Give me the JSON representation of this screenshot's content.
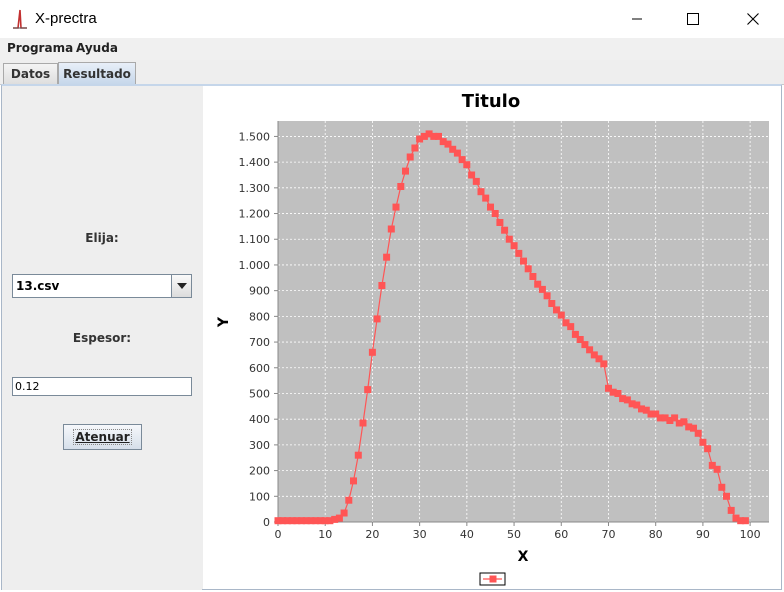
{
  "window": {
    "title": "X-prectra",
    "icon": "chart-spike-icon",
    "controls": [
      "minimize-icon",
      "maximize-icon",
      "close-icon"
    ]
  },
  "menu": {
    "items": [
      "Programa",
      "Ayuda"
    ]
  },
  "tabs": [
    {
      "label": "Datos",
      "active": false
    },
    {
      "label": "Resultado",
      "active": true
    }
  ],
  "panel": {
    "select_label": "Elija:",
    "select_value": "13.csv",
    "thickness_label": "Espesor:",
    "thickness_value": "0.12",
    "button_label": "Atenuar"
  },
  "colors": {
    "series": "#ff5555",
    "plot_bg": "#c0c0c0",
    "gridline": "#ffffff"
  },
  "chart_data": {
    "type": "line",
    "title": "Titulo",
    "xlabel": "X",
    "ylabel": "Y",
    "xlim": [
      0,
      104
    ],
    "ylim": [
      0,
      1560
    ],
    "xticks": [
      0,
      10,
      20,
      30,
      40,
      50,
      60,
      70,
      80,
      90,
      100
    ],
    "yticks": [
      0,
      100,
      200,
      300,
      400,
      500,
      600,
      700,
      800,
      900,
      1000,
      1100,
      1200,
      1300,
      1400,
      1500
    ],
    "ytick_labels": [
      "0",
      "100",
      "200",
      "300",
      "400",
      "500",
      "600",
      "700",
      "800",
      "900",
      "1.000",
      "1.100",
      "1.200",
      "1.300",
      "1.400",
      "1.500"
    ],
    "grid": true,
    "legend": "bottom-center",
    "series": [
      {
        "marker": "square",
        "x": [
          0,
          1,
          2,
          3,
          4,
          5,
          6,
          7,
          8,
          9,
          10,
          11,
          12,
          13,
          14,
          15,
          16,
          17,
          18,
          19,
          20,
          21,
          22,
          23,
          24,
          25,
          26,
          27,
          28,
          29,
          30,
          31,
          32,
          33,
          34,
          35,
          36,
          37,
          38,
          39,
          40,
          41,
          42,
          43,
          44,
          45,
          46,
          47,
          48,
          49,
          50,
          51,
          52,
          53,
          54,
          55,
          56,
          57,
          58,
          59,
          60,
          61,
          62,
          63,
          64,
          65,
          66,
          67,
          68,
          69,
          70,
          71,
          72,
          73,
          74,
          75,
          76,
          77,
          78,
          79,
          80,
          81,
          82,
          83,
          84,
          85,
          86,
          87,
          88,
          89,
          90,
          91,
          92,
          93,
          94,
          95,
          96,
          97,
          98,
          99
        ],
        "y": [
          5,
          5,
          5,
          5,
          5,
          5,
          5,
          5,
          5,
          5,
          5,
          5,
          10,
          15,
          35,
          85,
          160,
          260,
          385,
          515,
          660,
          790,
          920,
          1030,
          1140,
          1225,
          1305,
          1365,
          1420,
          1455,
          1490,
          1500,
          1510,
          1500,
          1500,
          1480,
          1470,
          1450,
          1435,
          1410,
          1390,
          1350,
          1325,
          1285,
          1260,
          1225,
          1200,
          1165,
          1135,
          1100,
          1075,
          1045,
          1015,
          985,
          955,
          925,
          905,
          880,
          850,
          825,
          805,
          775,
          760,
          730,
          710,
          690,
          670,
          650,
          635,
          615,
          520,
          505,
          500,
          480,
          475,
          460,
          455,
          440,
          435,
          420,
          420,
          405,
          405,
          395,
          405,
          385,
          390,
          370,
          365,
          345,
          310,
          285,
          220,
          205,
          135,
          100,
          45,
          15,
          5,
          5
        ]
      }
    ]
  }
}
